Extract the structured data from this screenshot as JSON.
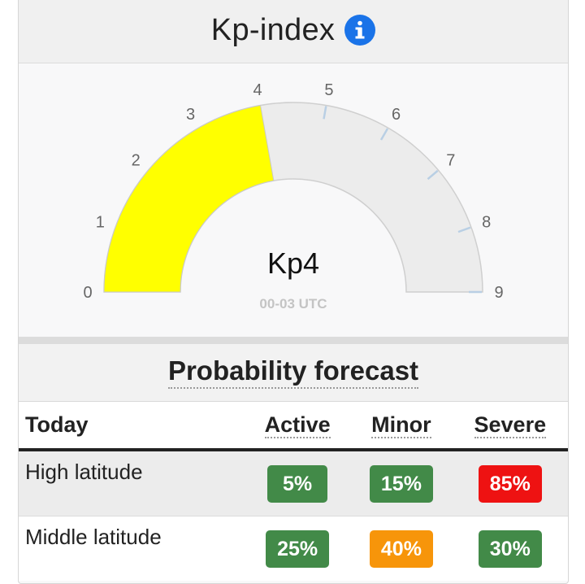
{
  "header": {
    "title": "Kp-index",
    "info_icon": "info-circle-icon",
    "info_color": "#1a73e8"
  },
  "gauge": {
    "value": 4,
    "min": 0,
    "max": 9,
    "ticks": [
      "0",
      "1",
      "2",
      "3",
      "4",
      "5",
      "6",
      "7",
      "8",
      "9"
    ],
    "value_label": "Kp4",
    "time_label": "00-03 UTC",
    "fill_color": "#ffff00",
    "track_color": "#ececec",
    "tick_color": "#b9cfe4"
  },
  "probability": {
    "title": "Probability forecast",
    "columns": {
      "today": "Today",
      "active": "Active",
      "minor": "Minor",
      "severe": "Severe"
    },
    "rows": [
      {
        "label": "High latitude",
        "active": "5%",
        "minor": "15%",
        "severe": "85%",
        "active_color": "green",
        "minor_color": "green",
        "severe_color": "red"
      },
      {
        "label": "Middle latitude",
        "active": "25%",
        "minor": "40%",
        "severe": "30%",
        "active_color": "green",
        "minor_color": "orange",
        "severe_color": "green"
      }
    ]
  }
}
